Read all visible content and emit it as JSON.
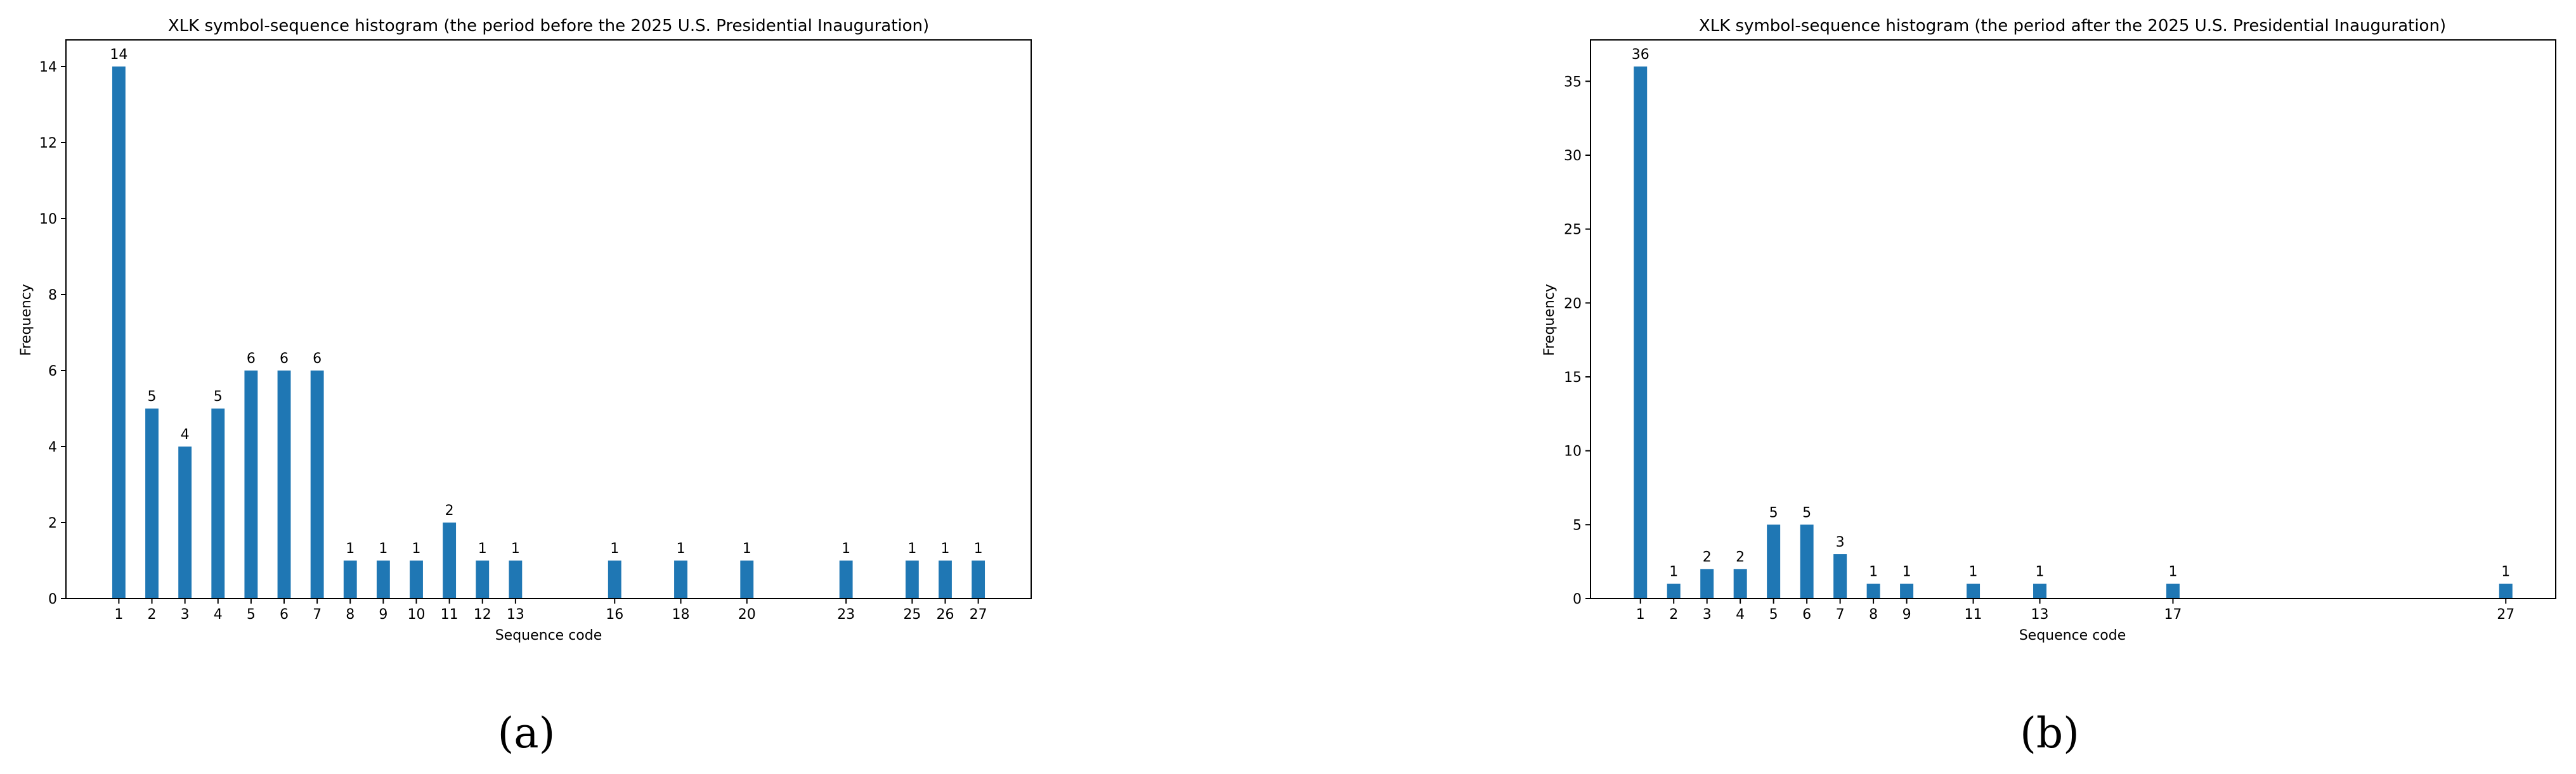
{
  "colors": {
    "bar": "#1f77b4"
  },
  "chart_data": [
    {
      "type": "bar",
      "title": "XLK symbol-sequence histogram (the period before the 2025 U.S. Presidential Inauguration)",
      "xlabel": "Sequence code",
      "ylabel": "Frequency",
      "x": [
        1,
        2,
        3,
        4,
        5,
        6,
        7,
        8,
        9,
        10,
        11,
        12,
        13,
        16,
        18,
        20,
        23,
        25,
        26,
        27
      ],
      "values": [
        14,
        5,
        4,
        5,
        6,
        6,
        6,
        1,
        1,
        1,
        2,
        1,
        1,
        1,
        1,
        1,
        1,
        1,
        1,
        1
      ],
      "xlim": [
        -0.6,
        28.6
      ],
      "ylim": [
        0,
        14.7
      ],
      "yticks": [
        0,
        2,
        4,
        6,
        8,
        10,
        12,
        14
      ],
      "grid": false,
      "caption": "(a)"
    },
    {
      "type": "bar",
      "title": "XLK symbol-sequence histogram (the period after the 2025 U.S. Presidential Inauguration)",
      "xlabel": "Sequence code",
      "ylabel": "Frequency",
      "x": [
        1,
        2,
        3,
        4,
        5,
        6,
        7,
        8,
        9,
        11,
        13,
        17,
        27
      ],
      "values": [
        36,
        1,
        2,
        2,
        5,
        5,
        3,
        1,
        1,
        1,
        1,
        1,
        1
      ],
      "xlim": [
        -0.5,
        28.5
      ],
      "ylim": [
        0,
        37.8
      ],
      "yticks": [
        0,
        5,
        10,
        15,
        20,
        25,
        30,
        35
      ],
      "grid": false,
      "caption": "(b)"
    }
  ]
}
